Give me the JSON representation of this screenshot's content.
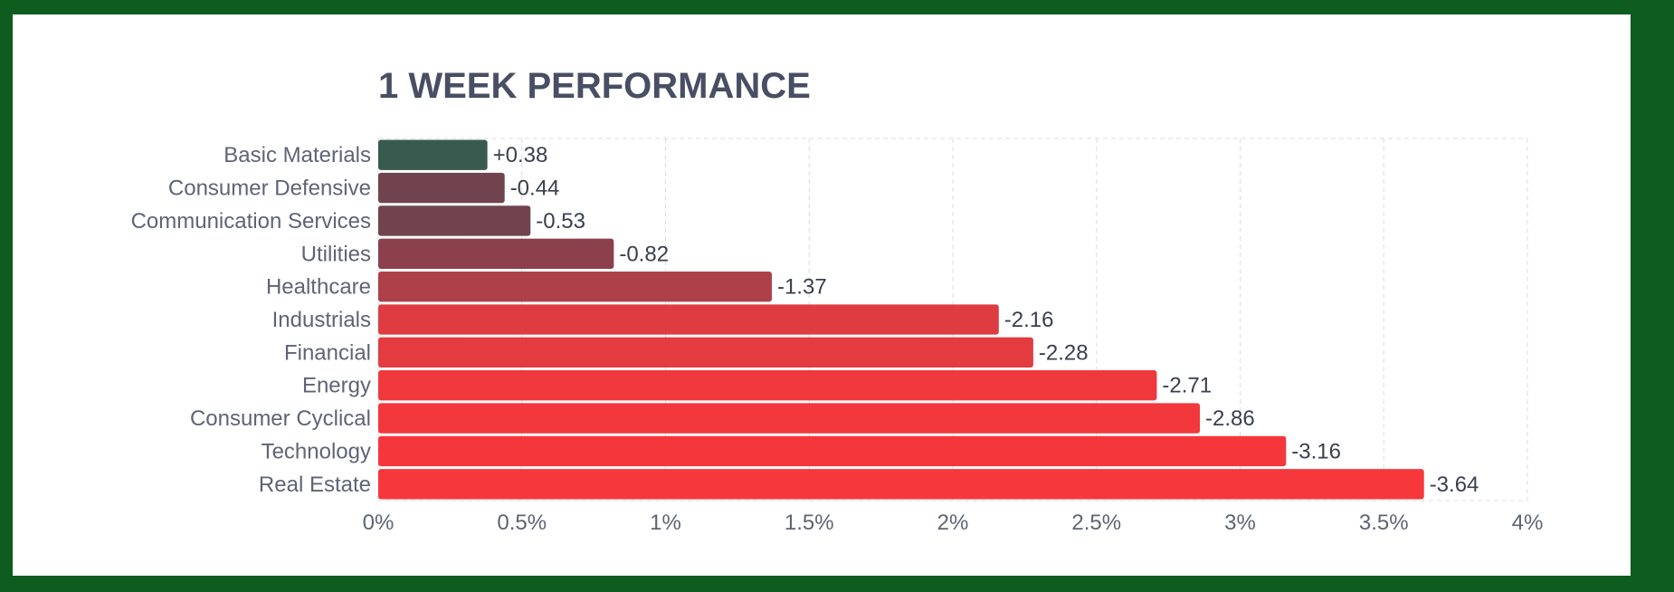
{
  "chart_data": {
    "type": "bar",
    "orientation": "horizontal",
    "title": "1 WEEK PERFORMANCE",
    "categories": [
      "Basic Materials",
      "Consumer Defensive",
      "Communication Services",
      "Utilities",
      "Healthcare",
      "Industrials",
      "Financial",
      "Energy",
      "Consumer Cyclical",
      "Technology",
      "Real Estate"
    ],
    "values": [
      0.38,
      -0.44,
      -0.53,
      -0.82,
      -1.37,
      -2.16,
      -2.28,
      -2.71,
      -2.86,
      -3.16,
      -3.64
    ],
    "value_labels": [
      "+0.38",
      "-0.44",
      "-0.53",
      "-0.82",
      "-1.37",
      "-2.16",
      "-2.28",
      "-2.71",
      "-2.86",
      "-3.16",
      "-3.64"
    ],
    "bar_colors": [
      "#385a4f",
      "#70434f",
      "#70434f",
      "#8c404b",
      "#ad4049",
      "#de3c41",
      "#e33b40",
      "#f0393d",
      "#f2383c",
      "#f5373b",
      "#f6373b"
    ],
    "xticks": [
      "0%",
      "0.5%",
      "1%",
      "1.5%",
      "2%",
      "2.5%",
      "3%",
      "3.5%",
      "4%"
    ],
    "xlim": [
      0,
      4
    ],
    "xlabel": "",
    "ylabel": "",
    "grid": true,
    "scale": "absolute-magnitude"
  }
}
